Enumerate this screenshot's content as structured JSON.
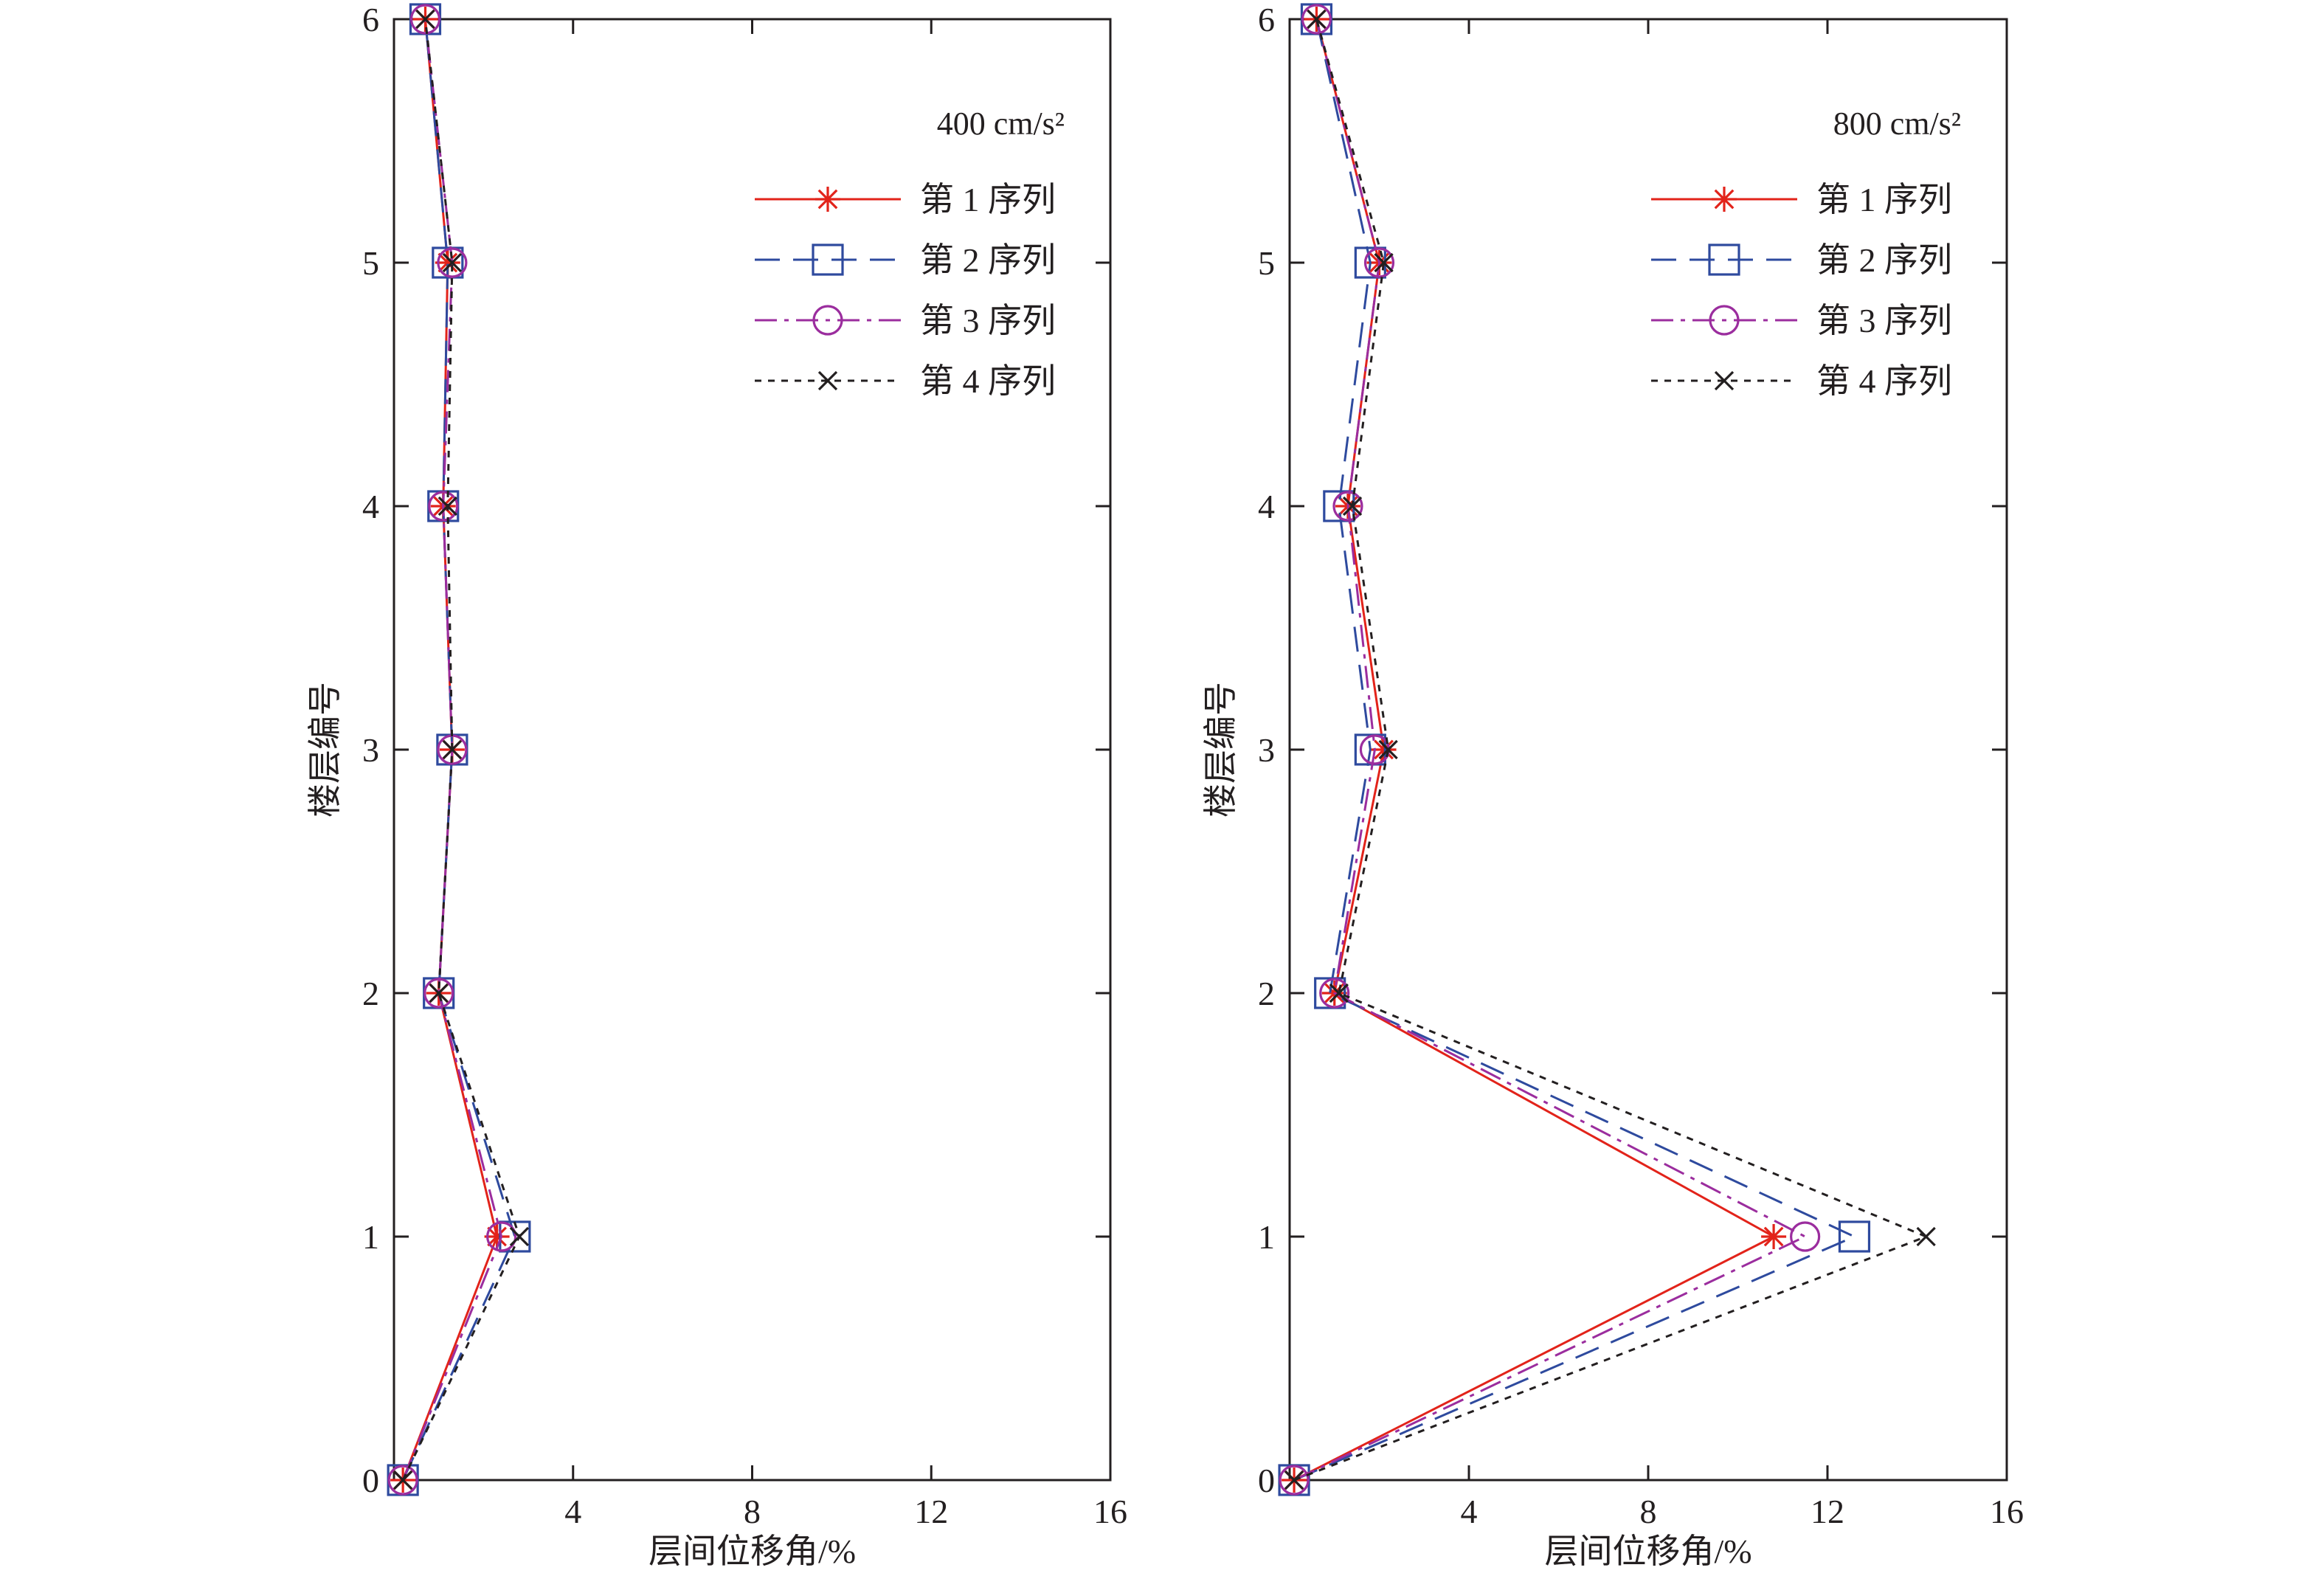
{
  "chart_data": [
    {
      "type": "line",
      "annotation": "400 cm/s²",
      "xlabel": "层间位移角/%",
      "ylabel": "楼层编号",
      "xlim": [
        0,
        16
      ],
      "ylim": [
        0,
        6
      ],
      "xticks": [
        4,
        8,
        12,
        16
      ],
      "yticks": [
        0,
        1,
        2,
        3,
        4,
        5,
        6
      ],
      "grid": false,
      "legend_position": "top-right",
      "series": [
        {
          "name": "第 1 序列",
          "x": [
            0.2,
            2.3,
            1.0,
            1.3,
            1.1,
            1.2,
            0.7
          ],
          "y": [
            0,
            1,
            2,
            3,
            4,
            5,
            6
          ]
        },
        {
          "name": "第 2 序列",
          "x": [
            0.2,
            2.7,
            1.0,
            1.3,
            1.1,
            1.2,
            0.7
          ],
          "y": [
            0,
            1,
            2,
            3,
            4,
            5,
            6
          ]
        },
        {
          "name": "第 3 序列",
          "x": [
            0.2,
            2.4,
            1.0,
            1.3,
            1.1,
            1.3,
            0.7
          ],
          "y": [
            0,
            1,
            2,
            3,
            4,
            5,
            6
          ]
        },
        {
          "name": "第 4 序列",
          "x": [
            0.2,
            2.8,
            1.0,
            1.3,
            1.2,
            1.3,
            0.7
          ],
          "y": [
            0,
            1,
            2,
            3,
            4,
            5,
            6
          ]
        }
      ]
    },
    {
      "type": "line",
      "annotation": "800 cm/s²",
      "xlabel": "层间位移角/%",
      "ylabel": "楼层编号",
      "xlim": [
        0,
        16
      ],
      "ylim": [
        0,
        6
      ],
      "xticks": [
        4,
        8,
        12,
        16
      ],
      "yticks": [
        0,
        1,
        2,
        3,
        4,
        5,
        6
      ],
      "grid": false,
      "legend_position": "top-right",
      "series": [
        {
          "name": "第 1 序列",
          "x": [
            0.1,
            10.8,
            1.0,
            2.1,
            1.3,
            2.0,
            0.6
          ],
          "y": [
            0,
            1,
            2,
            3,
            4,
            5,
            6
          ]
        },
        {
          "name": "第 2 序列",
          "x": [
            0.1,
            12.6,
            0.9,
            1.8,
            1.1,
            1.8,
            0.6
          ],
          "y": [
            0,
            1,
            2,
            3,
            4,
            5,
            6
          ]
        },
        {
          "name": "第 3 序列",
          "x": [
            0.1,
            11.5,
            1.0,
            1.9,
            1.3,
            2.0,
            0.6
          ],
          "y": [
            0,
            1,
            2,
            3,
            4,
            5,
            6
          ]
        },
        {
          "name": "第 4 序列",
          "x": [
            0.1,
            14.2,
            1.1,
            2.2,
            1.4,
            2.1,
            0.6
          ],
          "y": [
            0,
            1,
            2,
            3,
            4,
            5,
            6
          ]
        }
      ]
    }
  ],
  "styles": [
    {
      "color": "#e2231a",
      "dash": "",
      "marker": "asterisk"
    },
    {
      "color": "#2e4a9e",
      "dash": "34,18",
      "marker": "square"
    },
    {
      "color": "#9b2d9e",
      "dash": "30,10,6,10",
      "marker": "circle"
    },
    {
      "color": "#231f20",
      "dash": "9,9",
      "marker": "cross"
    }
  ]
}
